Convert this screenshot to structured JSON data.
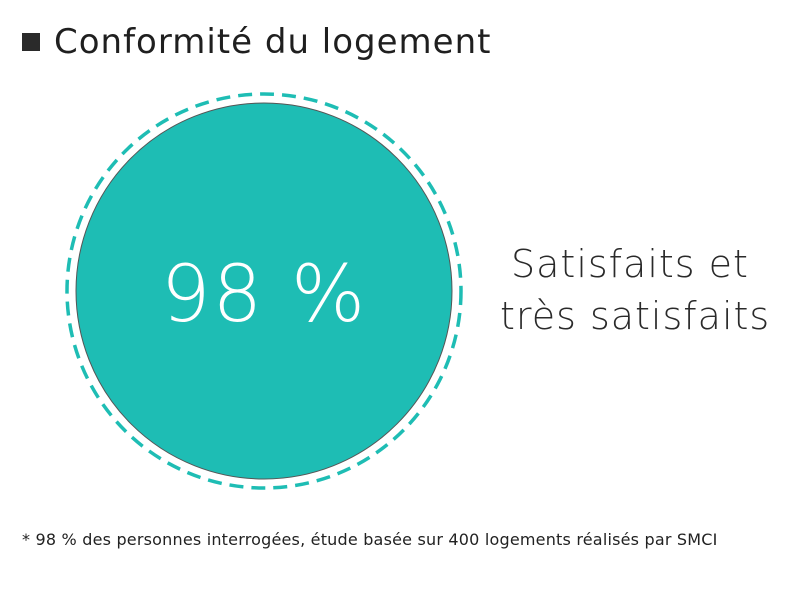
{
  "header": {
    "icon": "square-bullet-icon",
    "title": "Conformité du logement"
  },
  "colors": {
    "accent": "#1ebdb4",
    "dash": "#1ebdb4",
    "text": "#222222",
    "value_text": "#ffffff"
  },
  "chart_data": {
    "type": "pie",
    "value": 98,
    "value_label": "98 %",
    "label_lines": [
      "Satisfaits et",
      "très satisfaits"
    ]
  },
  "footnote": "* 98 % des personnes interrogées, étude basée sur 400 logements réalisés par SMCI"
}
